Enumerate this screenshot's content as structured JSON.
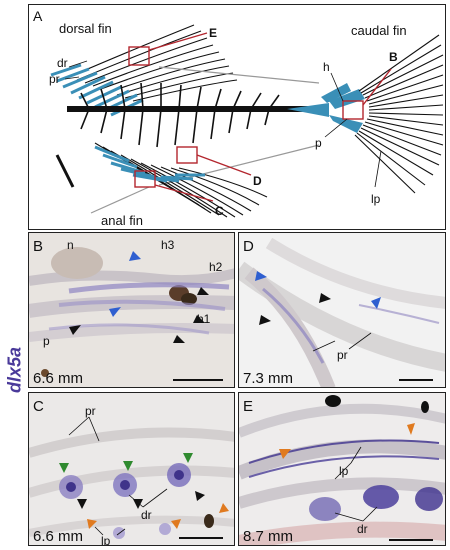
{
  "gene_label": "dlx5a",
  "colors": {
    "bone": "#111111",
    "cartilage_blue": "#3a8fb7",
    "box_red": "#b3262e",
    "stain_purple": "#4b3f9c",
    "arrow_blue": "#2f5fd0",
    "arrow_green": "#2f8a2f",
    "arrow_orange": "#e07a1f",
    "arrow_black": "#111111"
  },
  "panel_a": {
    "letter": "A",
    "labels": {
      "dorsal_fin": "dorsal fin",
      "caudal_fin": "caudal fin",
      "anal_fin": "anal fin",
      "dr": "dr",
      "pr": "pr",
      "h": "h",
      "p": "p",
      "lp": "lp",
      "box_e": "E",
      "box_b": "B",
      "box_c": "C",
      "box_d": "D"
    }
  },
  "panel_b": {
    "letter": "B",
    "stage": "6.6 mm",
    "labels": {
      "n": "n",
      "h3": "h3",
      "h2": "h2",
      "h1": "h1",
      "p": "p"
    }
  },
  "panel_c": {
    "letter": "C",
    "stage": "6.6 mm",
    "labels": {
      "pr": "pr",
      "dr": "dr",
      "lp": "lp"
    }
  },
  "panel_d": {
    "letter": "D",
    "stage": "7.3 mm",
    "labels": {
      "pr": "pr"
    }
  },
  "panel_e": {
    "letter": "E",
    "stage": "8.7 mm",
    "labels": {
      "lp": "lp",
      "dr": "dr"
    }
  }
}
